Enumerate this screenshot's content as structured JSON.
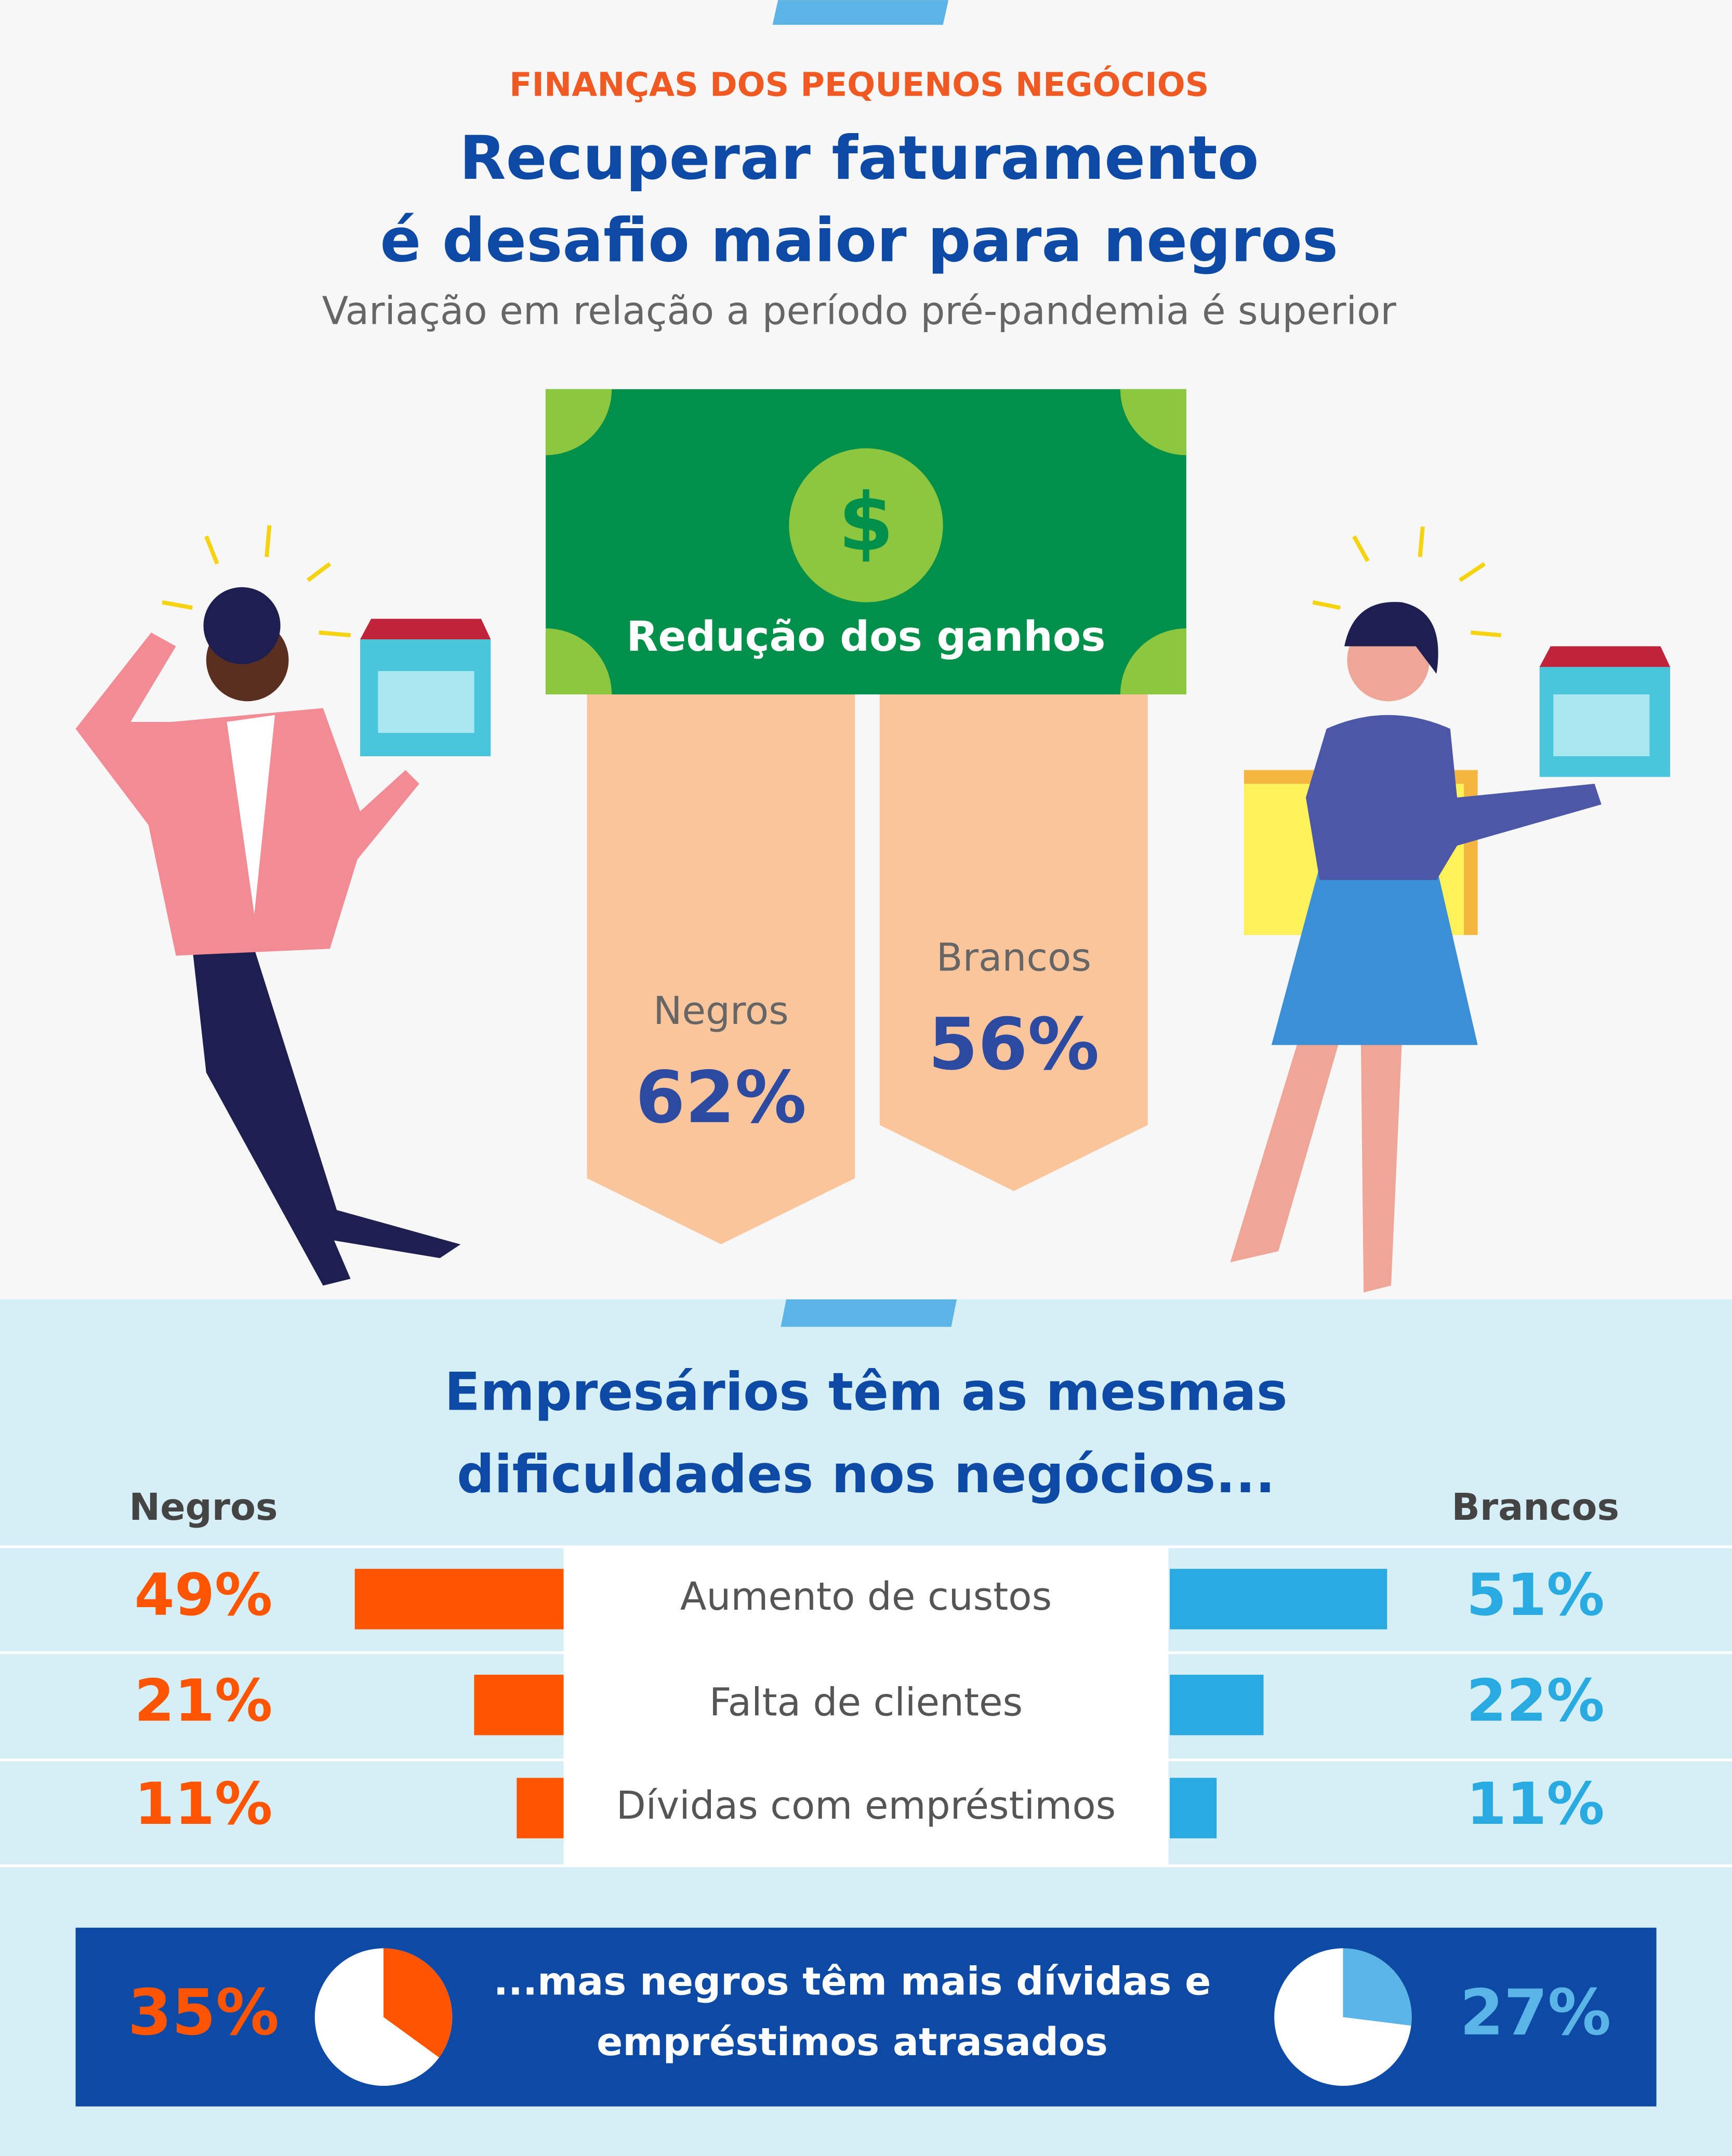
{
  "header": {
    "kicker": "FINANÇAS DOS PEQUENOS NEGÓCIOS",
    "title_lines": [
      "Recuperar faturamento",
      "é desafio maior para negros"
    ],
    "subtitle": "Variação em relação a período pré-pandemia é superior"
  },
  "chart_data": [
    {
      "type": "pennant",
      "title": "Redução dos ganhos",
      "categories": [
        "Negros",
        "Brancos"
      ],
      "values": [
        62,
        56
      ],
      "value_labels": [
        "62%",
        "56%"
      ],
      "color": "#fbc59c",
      "label_color": "#2b4aa0"
    },
    {
      "type": "diverging-bar",
      "title_lines": [
        "Empresários têm as mesmas",
        "dificuldades nos negócios..."
      ],
      "categories": [
        "Aumento de custos",
        "Falta de clientes",
        "Dívidas com empréstimos"
      ],
      "series": [
        {
          "name": "Negros",
          "color": "#ff5500",
          "values": [
            49,
            21,
            11
          ],
          "value_labels": [
            "49%",
            "21%",
            "11%"
          ]
        },
        {
          "name": "Brancos",
          "color": "#29abe2",
          "values": [
            51,
            22,
            11
          ],
          "value_labels": [
            "51%",
            "22%",
            "11%"
          ]
        }
      ]
    },
    {
      "type": "pie",
      "title_lines": [
        "...mas negros têm mais dívidas e",
        "empréstimos atrasados"
      ],
      "values": [
        35,
        27
      ],
      "value_labels": [
        "35%",
        "27%"
      ],
      "colors": [
        "#ff5500",
        "#5ab4e5"
      ]
    }
  ]
}
